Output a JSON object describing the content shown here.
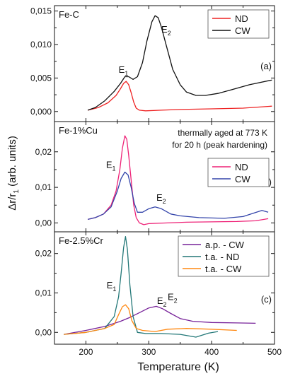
{
  "figure": {
    "y_axis_label": "Δr/r",
    "y_axis_label_sub": "1",
    "y_axis_label_tail": " (arb. units)",
    "x_axis_label": "Temperature (K)"
  },
  "chart_data": [
    {
      "type": "line",
      "sample_label": "Fe-C",
      "panel_tag": "(a)",
      "note_lines": [],
      "xlim": [
        150,
        500
      ],
      "ylim": [
        -0.0015,
        0.0158
      ],
      "yticks": [
        0.0,
        0.005,
        0.01,
        0.015
      ],
      "ytick_labels": [
        "0,000",
        "0,005",
        "0,010",
        "0,015"
      ],
      "legend": "top-right",
      "series": [
        {
          "name": "ND",
          "color": "#ee2222",
          "x": [
            203,
            220,
            235,
            248,
            255,
            260,
            264,
            268,
            272,
            276,
            280,
            285,
            295,
            320,
            350,
            400,
            450,
            496
          ],
          "y": [
            0.0002,
            0.0006,
            0.0013,
            0.0024,
            0.0034,
            0.0042,
            0.0045,
            0.004,
            0.0028,
            0.0014,
            0.0005,
            0.0002,
            0.0001,
            0.0002,
            0.0003,
            0.0004,
            0.0005,
            0.0008
          ]
        },
        {
          "name": "CW",
          "color": "#111111",
          "x": [
            203,
            215,
            230,
            245,
            255,
            262,
            268,
            275,
            282,
            290,
            297,
            305,
            310,
            315,
            320,
            328,
            338,
            350,
            360,
            375,
            390,
            410,
            430,
            460,
            496
          ],
          "y": [
            0.0002,
            0.0006,
            0.0016,
            0.003,
            0.0042,
            0.0052,
            0.0052,
            0.0048,
            0.0052,
            0.0073,
            0.0105,
            0.0134,
            0.0143,
            0.014,
            0.0126,
            0.0098,
            0.0063,
            0.004,
            0.0029,
            0.0024,
            0.0024,
            0.0027,
            0.0032,
            0.004,
            0.0047
          ]
        }
      ],
      "annotations": [
        {
          "text": "E",
          "sub": "1",
          "x": 252,
          "y": 0.0058
        },
        {
          "text": "E",
          "sub": "2",
          "x": 320,
          "y": 0.0118
        }
      ]
    },
    {
      "type": "line",
      "sample_label": "Fe-1%Cu",
      "panel_tag": "(b)",
      "note_lines": [
        "thermally aged at 773 K",
        "for 20 h (peak hardening)"
      ],
      "xlim": [
        150,
        500
      ],
      "ylim": [
        -0.0025,
        0.0285
      ],
      "yticks": [
        0.0,
        0.01,
        0.02
      ],
      "ytick_labels": [
        "0,00",
        "0,01",
        "0,02"
      ],
      "legend": "right",
      "series": [
        {
          "name": "ND",
          "color": "#ee2277",
          "x": [
            203,
            215,
            228,
            240,
            248,
            254,
            258,
            262,
            265,
            268,
            272,
            276,
            280,
            285,
            292,
            300,
            330,
            360,
            400,
            440,
            470,
            490
          ],
          "y": [
            0.001,
            0.0015,
            0.0025,
            0.005,
            0.009,
            0.015,
            0.021,
            0.0245,
            0.0235,
            0.019,
            0.012,
            0.005,
            0.0015,
            0.0,
            -0.0005,
            -0.0002,
            0.0,
            0.0002,
            0.0003,
            0.0004,
            0.0006,
            0.0012
          ]
        },
        {
          "name": "CW",
          "color": "#3344aa",
          "x": [
            203,
            215,
            228,
            240,
            250,
            256,
            262,
            267,
            272,
            277,
            282,
            290,
            300,
            310,
            320,
            335,
            350,
            380,
            420,
            450,
            480,
            490
          ],
          "y": [
            0.001,
            0.0015,
            0.0025,
            0.0045,
            0.009,
            0.0125,
            0.0143,
            0.0135,
            0.01,
            0.0055,
            0.003,
            0.003,
            0.004,
            0.0045,
            0.004,
            0.0025,
            0.002,
            0.0015,
            0.0013,
            0.0018,
            0.0035,
            0.003
          ]
        }
      ],
      "annotations": [
        {
          "text": "E",
          "sub": "1",
          "x": 232,
          "y": 0.0155
        },
        {
          "text": "E",
          "sub": "2",
          "x": 312,
          "y": 0.0062
        }
      ]
    },
    {
      "type": "line",
      "sample_label": "Fe-2.5%Cr",
      "panel_tag": "(c)",
      "note_lines": [],
      "xlim": [
        150,
        500
      ],
      "ylim": [
        -0.003,
        0.0255
      ],
      "yticks": [
        0.0,
        0.01,
        0.02
      ],
      "ytick_labels": [
        "0,00",
        "0,01",
        "0,02"
      ],
      "legend": "top-right",
      "series": [
        {
          "name": "a.p. - CW",
          "color": "#772299",
          "x": [
            165,
            200,
            230,
            255,
            270,
            285,
            300,
            312,
            322,
            335,
            350,
            370,
            400,
            440,
            470
          ],
          "y": [
            -0.0005,
            0.0005,
            0.0015,
            0.0028,
            0.0038,
            0.005,
            0.0062,
            0.0066,
            0.006,
            0.0048,
            0.0035,
            0.0028,
            0.0025,
            0.0024,
            0.0023
          ]
        },
        {
          "name": "t.a. - ND",
          "color": "#227777",
          "x": [
            165,
            200,
            230,
            245,
            252,
            256,
            260,
            263,
            266,
            270,
            275,
            282,
            295,
            320,
            350,
            375,
            395,
            410
          ],
          "y": [
            -0.0005,
            0.0,
            0.001,
            0.004,
            0.009,
            0.015,
            0.0215,
            0.0243,
            0.021,
            0.012,
            0.004,
            0.0,
            -0.0003,
            -0.0003,
            -0.0005,
            -0.0012,
            -0.0002,
            0.0002
          ]
        },
        {
          "name": "t.a. - CW",
          "color": "#ff8811",
          "x": [
            165,
            200,
            230,
            245,
            252,
            258,
            263,
            268,
            273,
            280,
            290,
            310,
            330,
            360,
            400,
            440
          ],
          "y": [
            -0.0005,
            0.0,
            0.001,
            0.002,
            0.0045,
            0.0065,
            0.007,
            0.006,
            0.003,
            0.001,
            0.0005,
            0.0002,
            0.0008,
            0.001,
            0.0008,
            0.0005
          ]
        }
      ],
      "annotations": [
        {
          "text": "E",
          "sub": "1",
          "x": 233,
          "y": 0.0112
        },
        {
          "text": "E",
          "sub": "2",
          "x": 313,
          "y": 0.0072
        },
        {
          "text": "E",
          "sub": "2",
          "x": 330,
          "y": 0.0082
        }
      ]
    }
  ],
  "x_axis": {
    "ticks": [
      200,
      300,
      400,
      500
    ],
    "tick_labels": [
      "200",
      "300",
      "400",
      "500"
    ],
    "minor_ticks": [
      250,
      350,
      450
    ]
  }
}
